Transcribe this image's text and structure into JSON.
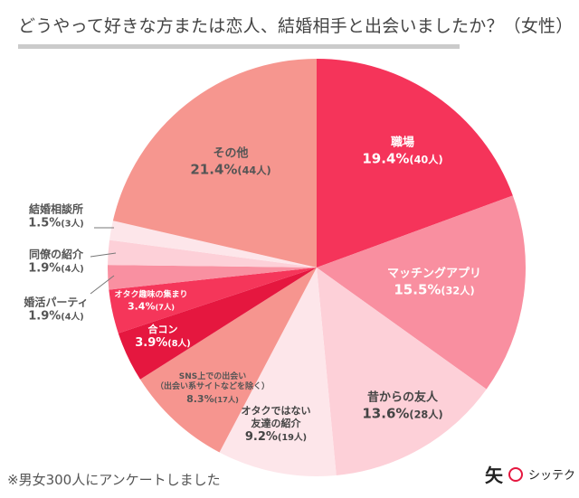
{
  "title": "どうやって好きな方または恋人、結婚相手と出会いましたか？（女性）",
  "note": "※男女300人にアンケートしました",
  "logo": {
    "mark": "矢",
    "text": "シッテク"
  },
  "chart_data": {
    "type": "pie",
    "title": "どうやって好きな方または恋人、結婚相手と出会いましたか？（女性）",
    "start": "top",
    "direction": "clockwise",
    "slices": [
      {
        "label": "職場",
        "percent": 19.4,
        "count": "40人",
        "pct_text": "19.4%",
        "color": "#f5345a"
      },
      {
        "label": "マッチングアプリ",
        "percent": 15.5,
        "count": "32人",
        "pct_text": "15.5%",
        "color": "#f98fa0"
      },
      {
        "label": "昔からの友人",
        "percent": 13.6,
        "count": "28人",
        "pct_text": "13.6%",
        "color": "#fdd0d8"
      },
      {
        "label": "オタクではない\n友達の紹介",
        "percent": 9.2,
        "count": "19人",
        "pct_text": "9.2%",
        "color": "#fde6ea"
      },
      {
        "label": "SNS上での出会い\n（出会い系サイトなどを除く）",
        "percent": 8.3,
        "count": "17人",
        "pct_text": "8.3%",
        "color": "#f6958f"
      },
      {
        "label": "合コン",
        "percent": 3.9,
        "count": "8人",
        "pct_text": "3.9%",
        "color": "#e5173f"
      },
      {
        "label": "オタク趣味の集まり",
        "percent": 3.4,
        "count": "7人",
        "pct_text": "3.4%",
        "color": "#f5365a"
      },
      {
        "label": "婚活パーティ",
        "percent": 1.9,
        "count": "4人",
        "pct_text": "1.9%",
        "color": "#f990a1"
      },
      {
        "label": "同僚の紹介",
        "percent": 1.9,
        "count": "4人",
        "pct_text": "1.9%",
        "color": "#fdd0d8"
      },
      {
        "label": "結婚相談所",
        "percent": 1.5,
        "count": "3人",
        "pct_text": "1.5%",
        "color": "#fde6ea"
      },
      {
        "label": "その他",
        "percent": 21.4,
        "count": "44人",
        "pct_text": "21.4%",
        "color": "#f6968f"
      }
    ]
  }
}
